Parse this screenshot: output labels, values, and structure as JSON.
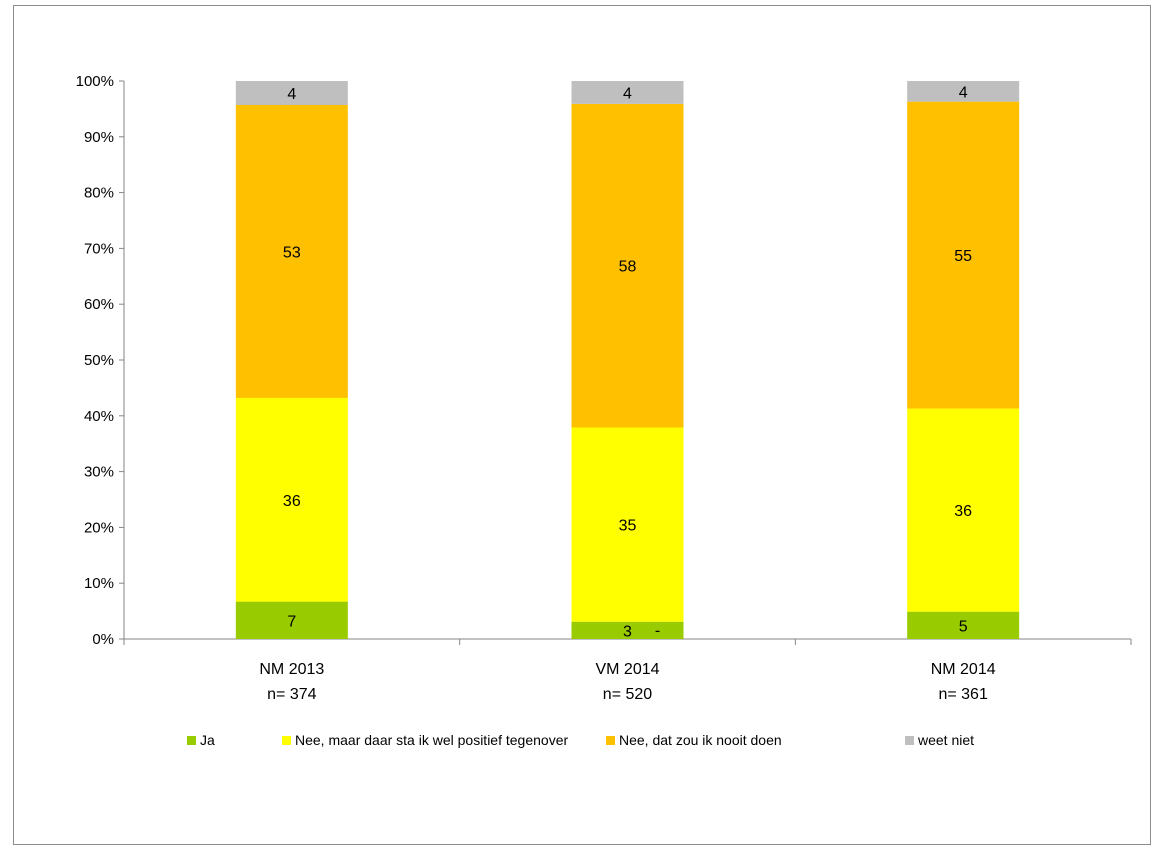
{
  "chart_data": {
    "type": "bar",
    "stacked": true,
    "categories": [
      {
        "name": "NM 2013",
        "n_label": "n= 374"
      },
      {
        "name": "VM 2014",
        "n_label": "n= 520"
      },
      {
        "name": "NM 2014",
        "n_label": "n= 361"
      }
    ],
    "series": [
      {
        "name": "Ja",
        "color": "#99cc00",
        "values": [
          6.7,
          3.1,
          4.9
        ],
        "labels": [
          "7",
          "3",
          "5"
        ]
      },
      {
        "name": "Nee, maar daar sta ik wel positief tegenover",
        "color": "#ffff00",
        "values": [
          36.5,
          34.8,
          36.4
        ],
        "labels": [
          "36",
          "35",
          "36"
        ]
      },
      {
        "name": "Nee, dat zou ik nooit doen",
        "color": "#ffc000",
        "values": [
          52.5,
          58.0,
          55.0
        ],
        "labels": [
          "53",
          "58",
          "55"
        ]
      },
      {
        "name": "weet niet",
        "color": "#bfbfbf",
        "values": [
          4.3,
          4.1,
          3.7
        ],
        "labels": [
          "4",
          "4",
          "4"
        ]
      }
    ],
    "extra_labels": [
      {
        "category_index": 1,
        "text": "-"
      }
    ],
    "ylim": [
      0,
      100
    ],
    "y_ticks": [
      "0%",
      "10%",
      "20%",
      "30%",
      "40%",
      "50%",
      "60%",
      "70%",
      "80%",
      "90%",
      "100%"
    ],
    "grid": false,
    "legend_position": "bottom"
  }
}
